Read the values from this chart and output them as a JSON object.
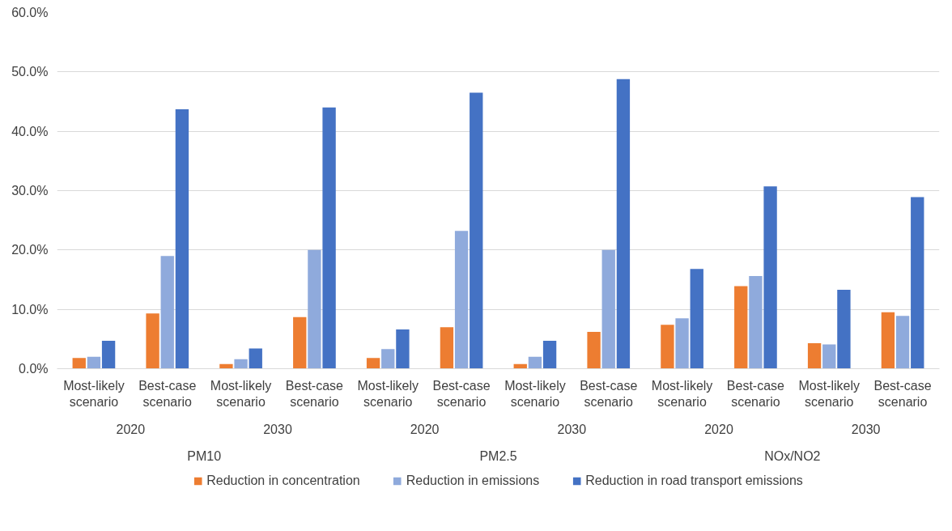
{
  "chart_data": {
    "type": "bar",
    "categories": [
      "Most-likely scenario",
      "Best-case scenario",
      "Most-likely scenario",
      "Best-case scenario",
      "Most-likely scenario",
      "Best-case scenario",
      "Most-likely scenario",
      "Best-case scenario",
      "Most-likely scenario",
      "Best-case scenario",
      "Most-likely scenario",
      "Best-case scenario"
    ],
    "annotations": [
      "2020",
      "2030",
      "2020",
      "2030",
      "2020",
      "2030",
      "PM10",
      "PM2.5",
      "NOx/NO2"
    ],
    "series": [
      {
        "name": "Reduction in concentration",
        "color": "#ed7d31",
        "values": [
          1.8,
          9.3,
          0.8,
          8.7,
          1.8,
          7.0,
          0.8,
          6.2,
          7.4,
          13.9,
          4.3,
          9.5
        ]
      },
      {
        "name": "Reduction in emissions",
        "color": "#8faadc",
        "values": [
          2.0,
          19.0,
          1.6,
          20.0,
          3.3,
          23.2,
          2.0,
          20.0,
          8.5,
          15.6,
          4.1,
          8.9
        ]
      },
      {
        "name": "Reduction in road transport emissions",
        "color": "#4472c4",
        "values": [
          4.7,
          43.7,
          3.4,
          44.0,
          6.6,
          46.5,
          4.7,
          48.8,
          16.8,
          30.7,
          13.3,
          28.9
        ]
      }
    ],
    "ylim": [
      0,
      60
    ],
    "yticks": [
      {
        "value": 0,
        "label": "0.0%"
      },
      {
        "value": 10,
        "label": "10.0%"
      },
      {
        "value": 20,
        "label": "20.0%"
      },
      {
        "value": 30,
        "label": "30.0%"
      },
      {
        "value": 40,
        "label": "40.0%"
      },
      {
        "value": 50,
        "label": "50.0%"
      },
      {
        "value": 60,
        "label": "60.0%"
      }
    ],
    "grid": "y",
    "legend": "bottom"
  }
}
